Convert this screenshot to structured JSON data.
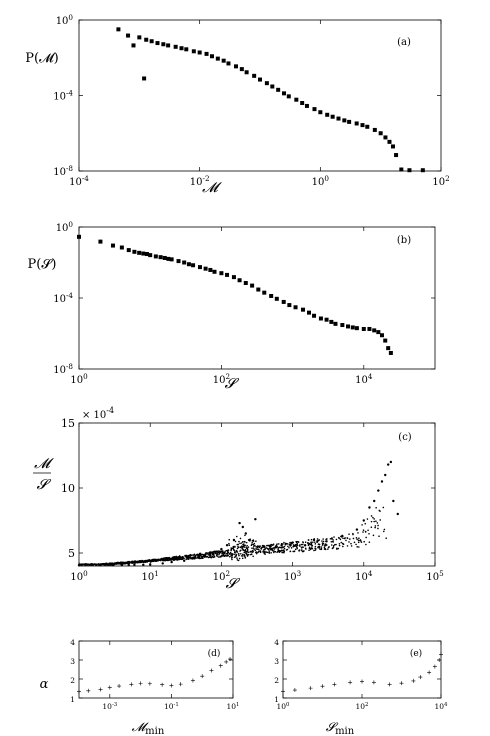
{
  "chart_data": [
    {
      "panel_label": "(a)",
      "type": "scatter",
      "xlabel": "𝓜",
      "ylabel": "P(𝓜)",
      "x_scale": "log",
      "y_scale": "log",
      "xlim": [
        0.0001,
        100
      ],
      "ylim": [
        1e-08,
        1
      ],
      "x_ticks": [
        {
          "v": 0.0001,
          "b": "10",
          "e": "-4"
        },
        {
          "v": 0.01,
          "b": "10",
          "e": "-2"
        },
        {
          "v": 1,
          "b": "10",
          "e": "0"
        },
        {
          "v": 100,
          "b": "10",
          "e": "2"
        }
      ],
      "y_ticks": [
        {
          "v": 1,
          "b": "10",
          "e": "0"
        },
        {
          "v": 0.0001,
          "b": "10",
          "e": "-4"
        },
        {
          "v": 1e-08,
          "b": "10",
          "e": "-8"
        }
      ],
      "series": [
        {
          "marker": "square",
          "points": [
            [
              0.00045,
              0.32
            ],
            [
              0.00065,
              0.15
            ],
            [
              0.0008,
              0.045
            ],
            [
              0.001,
              0.12
            ],
            [
              0.0012,
              0.0008
            ],
            [
              0.0013,
              0.09
            ],
            [
              0.0016,
              0.075
            ],
            [
              0.002,
              0.06
            ],
            [
              0.0025,
              0.052
            ],
            [
              0.003,
              0.045
            ],
            [
              0.004,
              0.038
            ],
            [
              0.005,
              0.032
            ],
            [
              0.006,
              0.028
            ],
            [
              0.008,
              0.022
            ],
            [
              0.01,
              0.019
            ],
            [
              0.013,
              0.016
            ],
            [
              0.016,
              0.012
            ],
            [
              0.02,
              0.009
            ],
            [
              0.025,
              0.007
            ],
            [
              0.03,
              0.005
            ],
            [
              0.04,
              0.0035
            ],
            [
              0.05,
              0.0025
            ],
            [
              0.06,
              0.0017
            ],
            [
              0.08,
              0.0011
            ],
            [
              0.1,
              0.0007
            ],
            [
              0.13,
              0.00045
            ],
            [
              0.16,
              0.0003
            ],
            [
              0.2,
              0.0002
            ],
            [
              0.25,
              0.00013
            ],
            [
              0.3,
              9e-05
            ],
            [
              0.4,
              6e-05
            ],
            [
              0.5,
              4e-05
            ],
            [
              0.6,
              2.8e-05
            ],
            [
              0.8,
              1.9e-05
            ],
            [
              1.0,
              1.3e-05
            ],
            [
              1.3,
              9.5e-06
            ],
            [
              1.6,
              7.5e-06
            ],
            [
              2.0,
              6e-06
            ],
            [
              2.5,
              4.8e-06
            ],
            [
              3.0,
              4e-06
            ],
            [
              4.0,
              3.3e-06
            ],
            [
              5.0,
              2.7e-06
            ],
            [
              6.0,
              2.2e-06
            ],
            [
              8.0,
              1.5e-06
            ],
            [
              10.0,
              1e-06
            ],
            [
              12.0,
              6e-07
            ],
            [
              14.0,
              3.5e-07
            ],
            [
              16.0,
              2e-07
            ],
            [
              18.0,
              7e-08
            ],
            [
              22.0,
              1.2e-08
            ],
            [
              30.0,
              1.1e-08
            ],
            [
              50.0,
              1.1e-08
            ]
          ]
        }
      ]
    },
    {
      "panel_label": "(b)",
      "type": "scatter",
      "xlabel": "𝓢",
      "ylabel": "P(𝓢)",
      "x_scale": "log",
      "y_scale": "log",
      "xlim": [
        1,
        100000
      ],
      "ylim": [
        1e-08,
        1
      ],
      "x_ticks": [
        {
          "v": 1,
          "b": "10",
          "e": "0"
        },
        {
          "v": 100,
          "b": "10",
          "e": "2"
        },
        {
          "v": 10000,
          "b": "10",
          "e": "4"
        }
      ],
      "y_ticks": [
        {
          "v": 1,
          "b": "10",
          "e": "0"
        },
        {
          "v": 0.0001,
          "b": "10",
          "e": "-4"
        },
        {
          "v": 1e-08,
          "b": "10",
          "e": "-8"
        }
      ],
      "series": [
        {
          "marker": "square",
          "points": [
            [
              1,
              0.28
            ],
            [
              2,
              0.15
            ],
            [
              3,
              0.09
            ],
            [
              4,
              0.07
            ],
            [
              5,
              0.05
            ],
            [
              6,
              0.04
            ],
            [
              7,
              0.035
            ],
            [
              8,
              0.032
            ],
            [
              9,
              0.03
            ],
            [
              10,
              0.026
            ],
            [
              12,
              0.022
            ],
            [
              14,
              0.02
            ],
            [
              16,
              0.018
            ],
            [
              18,
              0.016
            ],
            [
              20,
              0.015
            ],
            [
              25,
              0.012
            ],
            [
              30,
              0.01
            ],
            [
              35,
              0.008
            ],
            [
              40,
              0.007
            ],
            [
              50,
              0.0055
            ],
            [
              60,
              0.0045
            ],
            [
              70,
              0.0038
            ],
            [
              80,
              0.003
            ],
            [
              100,
              0.0025
            ],
            [
              120,
              0.002
            ],
            [
              150,
              0.0015
            ],
            [
              180,
              0.001
            ],
            [
              220,
              0.0007
            ],
            [
              270,
              0.0005
            ],
            [
              330,
              0.0003
            ],
            [
              400,
              0.0002
            ],
            [
              500,
              0.00013
            ],
            [
              600,
              9e-05
            ],
            [
              750,
              6e-05
            ],
            [
              900,
              4e-05
            ],
            [
              1100,
              3e-05
            ],
            [
              1400,
              2.2e-05
            ],
            [
              1700,
              1.5e-05
            ],
            [
              2000,
              1e-05
            ],
            [
              2500,
              7e-06
            ],
            [
              3000,
              6e-06
            ],
            [
              3500,
              4.5e-06
            ],
            [
              4000,
              3.5e-06
            ],
            [
              5000,
              3e-06
            ],
            [
              6000,
              2.5e-06
            ],
            [
              7000,
              2.2e-06
            ],
            [
              8000,
              2e-06
            ],
            [
              10000,
              1.8e-06
            ],
            [
              12000,
              1.8e-06
            ],
            [
              14000,
              1.5e-06
            ],
            [
              16000,
              1.2e-06
            ],
            [
              18000,
              8e-07
            ],
            [
              20000,
              4e-07
            ],
            [
              22000,
              1.5e-07
            ],
            [
              24000,
              8e-08
            ]
          ]
        }
      ]
    },
    {
      "panel_label": "(c)",
      "type": "scatter",
      "xlabel": "𝓢",
      "ylabel_num": "𝓜",
      "ylabel_den": "𝓢",
      "y_exponent_label": "× 10",
      "y_exponent_power": "-4",
      "x_scale": "log",
      "y_scale": "linear",
      "xlim": [
        1,
        100000
      ],
      "ylim": [
        4,
        15
      ],
      "x_ticks": [
        {
          "v": 1,
          "b": "10",
          "e": "0"
        },
        {
          "v": 10,
          "b": "10",
          "e": "1"
        },
        {
          "v": 100,
          "b": "10",
          "e": "2"
        },
        {
          "v": 1000,
          "b": "10",
          "e": "3"
        },
        {
          "v": 10000,
          "b": "10",
          "e": "4"
        },
        {
          "v": 100000,
          "b": "10",
          "e": "5"
        }
      ],
      "y_ticks": [
        {
          "v": 5,
          "t": "5"
        },
        {
          "v": 10,
          "t": "10"
        },
        {
          "v": 15,
          "t": "15"
        }
      ],
      "series": [
        {
          "marker": "dot",
          "points": [
            [
              1,
              4.05
            ],
            [
              2,
              4.05
            ],
            [
              3,
              4.06
            ],
            [
              4,
              4.07
            ],
            [
              5,
              4.08
            ],
            [
              6,
              4.08
            ],
            [
              8,
              4.1
            ],
            [
              10,
              4.12
            ],
            [
              15,
              4.2
            ],
            [
              20,
              4.3
            ],
            [
              30,
              4.4
            ],
            [
              40,
              4.6
            ],
            [
              50,
              4.8
            ],
            [
              60,
              4.9
            ],
            [
              80,
              5.1
            ],
            [
              100,
              5.3
            ],
            [
              120,
              5.6
            ],
            [
              150,
              6.0
            ],
            [
              180,
              7.3
            ],
            [
              200,
              7.0
            ],
            [
              220,
              6.5
            ],
            [
              250,
              6.0
            ],
            [
              300,
              7.6
            ],
            [
              400,
              5.5
            ],
            [
              500,
              5.3
            ],
            [
              700,
              5.6
            ],
            [
              1000,
              5.8
            ],
            [
              1500,
              5.6
            ],
            [
              2000,
              6.0
            ],
            [
              3000,
              5.9
            ],
            [
              5000,
              6.3
            ],
            [
              8000,
              6.8
            ],
            [
              10000,
              7.5
            ],
            [
              12000,
              8.5
            ],
            [
              14000,
              9.0
            ],
            [
              16000,
              9.8
            ],
            [
              18000,
              10.5
            ],
            [
              20000,
              11.0
            ],
            [
              22000,
              11.8
            ],
            [
              24000,
              12.0
            ],
            [
              26000,
              9.0
            ],
            [
              30000,
              8.0
            ]
          ]
        }
      ]
    },
    {
      "panel_label": "(d)",
      "type": "scatter",
      "xlabel_main": "𝓜",
      "xlabel_sub": "min",
      "ylabel": "α",
      "x_scale": "log",
      "y_scale": "linear",
      "xlim": [
        0.0001,
        10
      ],
      "ylim": [
        1,
        4
      ],
      "x_ticks": [
        {
          "v": 0.001,
          "b": "10",
          "e": "-3"
        },
        {
          "v": 0.1,
          "b": "10",
          "e": "-1"
        },
        {
          "v": 10,
          "b": "10",
          "e": "1"
        }
      ],
      "y_ticks": [
        {
          "v": 1,
          "t": "1"
        },
        {
          "v": 2,
          "t": "2"
        },
        {
          "v": 3,
          "t": "3"
        },
        {
          "v": 4,
          "t": "4"
        }
      ],
      "series": [
        {
          "marker": "plus",
          "points": [
            [
              0.0001,
              1.33
            ],
            [
              0.0002,
              1.38
            ],
            [
              0.0005,
              1.45
            ],
            [
              0.001,
              1.55
            ],
            [
              0.002,
              1.63
            ],
            [
              0.005,
              1.72
            ],
            [
              0.01,
              1.77
            ],
            [
              0.02,
              1.75
            ],
            [
              0.05,
              1.7
            ],
            [
              0.1,
              1.66
            ],
            [
              0.2,
              1.73
            ],
            [
              0.5,
              1.92
            ],
            [
              1,
              2.15
            ],
            [
              2,
              2.45
            ],
            [
              4,
              2.7
            ],
            [
              6,
              2.9
            ],
            [
              8,
              3.05
            ]
          ]
        }
      ]
    },
    {
      "panel_label": "(e)",
      "type": "scatter",
      "xlabel_main": "𝓢",
      "xlabel_sub": "min",
      "ylabel": "",
      "x_scale": "log",
      "y_scale": "linear",
      "xlim": [
        1,
        10000
      ],
      "ylim": [
        1,
        4
      ],
      "x_ticks": [
        {
          "v": 1,
          "b": "10",
          "e": "0"
        },
        {
          "v": 100,
          "b": "10",
          "e": "2"
        },
        {
          "v": 10000,
          "b": "10",
          "e": "4"
        }
      ],
      "y_ticks": [
        {
          "v": 1,
          "t": "1"
        },
        {
          "v": 2,
          "t": "2"
        },
        {
          "v": 3,
          "t": "3"
        },
        {
          "v": 4,
          "t": "4"
        }
      ],
      "series": [
        {
          "marker": "plus",
          "points": [
            [
              1,
              1.35
            ],
            [
              2,
              1.42
            ],
            [
              5,
              1.52
            ],
            [
              10,
              1.62
            ],
            [
              20,
              1.72
            ],
            [
              50,
              1.82
            ],
            [
              100,
              1.87
            ],
            [
              200,
              1.82
            ],
            [
              500,
              1.72
            ],
            [
              1000,
              1.78
            ],
            [
              2000,
              1.9
            ],
            [
              3000,
              2.1
            ],
            [
              5000,
              2.35
            ],
            [
              7000,
              2.65
            ],
            [
              9000,
              3.0
            ],
            [
              10000,
              3.3
            ]
          ]
        }
      ]
    }
  ]
}
